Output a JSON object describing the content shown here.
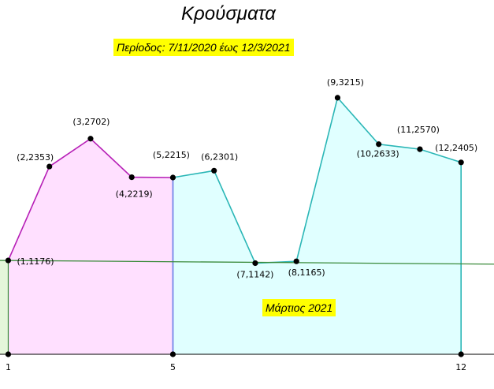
{
  "title": "Κρούσματα",
  "annotations": {
    "period": "Περίοδος: 7/11/2020 έως 12/3/2021",
    "month": "Μάρτιος 2021"
  },
  "colors": {
    "magenta_line": "#b61fb6",
    "magenta_fill": "#ffe0ff",
    "cyan_line": "#2ab6b6",
    "cyan_fill": "#e0ffff",
    "green_line": "#3a8a3a",
    "green_fill": "#e4f6da",
    "blue_divider": "#6d95ee",
    "highlight": "#ffff00"
  },
  "chart_data": {
    "type": "area",
    "x": [
      1,
      2,
      3,
      4,
      5,
      6,
      7,
      8,
      9,
      10,
      11,
      12
    ],
    "y": [
      1176,
      2353,
      2702,
      2219,
      2215,
      2301,
      1142,
      1165,
      3215,
      2633,
      2570,
      2405
    ],
    "point_labels": [
      "(1,1176)",
      "(2,2353)",
      "(3,2702)",
      "(4,2219)",
      "(5,2215)",
      "(6,2301)",
      "(7,1142)",
      "(8,1165)",
      "(9,3215)",
      "(10,2633)",
      "(11,2570)",
      "(12,2405)"
    ],
    "xticks": [
      "1",
      "5",
      "12"
    ],
    "segments": [
      {
        "from_x": 1,
        "to_x": 5,
        "color": "magenta"
      },
      {
        "from_x": 5,
        "to_x": 12,
        "color": "cyan"
      }
    ],
    "trend_line": {
      "x": [
        0.8,
        12.8
      ],
      "y": [
        1176,
        1130
      ]
    },
    "xlim": [
      0.8,
      12.8
    ],
    "ylim": [
      0,
      3550
    ]
  }
}
